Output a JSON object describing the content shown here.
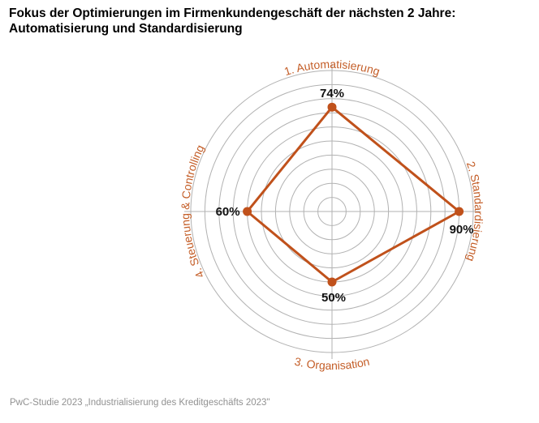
{
  "title": {
    "line1": "Fokus der Optimierungen im Firmenkundengeschäft der nächsten 2 Jahre:",
    "line2": "Automatisierung und Standardisierung"
  },
  "source": "PwC-Studie 2023 „Industrialisierung des Kreditgeschäfts 2023\"",
  "chart_data": {
    "type": "radar",
    "title": "Fokus der Optimierungen im Firmenkundengeschäft der nächsten 2 Jahre: Automatisierung und Standardisierung",
    "max": 100,
    "rings": 10,
    "value_suffix": "%",
    "axes": [
      {
        "label": "1. Automatisierung",
        "value": 74
      },
      {
        "label": "2. Standardisierung",
        "value": 90
      },
      {
        "label": "3. Organisation",
        "value": 50
      },
      {
        "label": "4. Steuerung & Controlling",
        "value": 60
      }
    ],
    "colors": {
      "series": "#c0511b",
      "axis_labels": "#c45e28",
      "grid": "#b2b2b2",
      "value_labels": "#111111"
    },
    "legend": "none",
    "grid": true
  }
}
